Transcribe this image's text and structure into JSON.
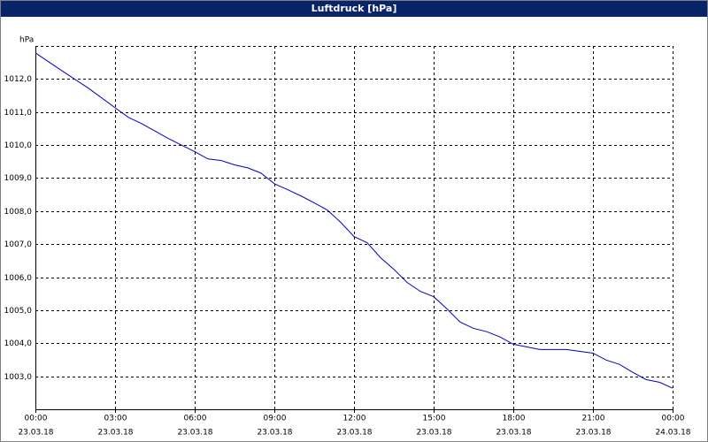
{
  "chart_data": {
    "type": "line",
    "title": "Luftdruck [hPa]",
    "y_label": "hPa",
    "x": [
      0,
      1,
      2,
      3,
      3.5,
      4,
      5,
      6,
      6.5,
      7,
      7.5,
      8,
      8.5,
      9,
      9.5,
      10,
      10.5,
      11,
      11.5,
      12,
      12.5,
      13,
      13.5,
      14,
      14.5,
      15,
      15.5,
      16,
      16.5,
      17,
      17.5,
      18,
      18.5,
      19,
      20,
      21,
      21.5,
      22,
      22.5,
      23,
      23.5,
      24
    ],
    "series": [
      {
        "name": "Luftdruck",
        "color": "#0000c0",
        "values": [
          1012.79,
          1012.25,
          1011.72,
          1011.13,
          1010.84,
          1010.65,
          1010.2,
          1009.8,
          1009.58,
          1009.53,
          1009.4,
          1009.31,
          1009.15,
          1008.83,
          1008.65,
          1008.46,
          1008.25,
          1008.03,
          1007.66,
          1007.23,
          1007.04,
          1006.59,
          1006.24,
          1005.84,
          1005.57,
          1005.41,
          1005.04,
          1004.64,
          1004.45,
          1004.35,
          1004.19,
          1003.97,
          1003.89,
          1003.81,
          1003.81,
          1003.7,
          1003.49,
          1003.36,
          1003.12,
          1002.9,
          1002.82,
          1002.64
        ]
      }
    ],
    "xlim": [
      0,
      24
    ],
    "ylim": [
      1002,
      1013
    ],
    "xticks": [
      {
        "value": 0,
        "label": "00:00"
      },
      {
        "value": 3,
        "label": "03:00"
      },
      {
        "value": 6,
        "label": "06:00"
      },
      {
        "value": 9,
        "label": "09:00"
      },
      {
        "value": 12,
        "label": "12:00"
      },
      {
        "value": 15,
        "label": "15:00"
      },
      {
        "value": 18,
        "label": "18:00"
      },
      {
        "value": 21,
        "label": "21:00"
      },
      {
        "value": 24,
        "label": "00:00"
      }
    ],
    "xtick_dates": [
      "23.03.18",
      "23.03.18",
      "23.03.18",
      "23.03.18",
      "23.03.18",
      "23.03.18",
      "23.03.18",
      "23.03.18",
      "24.03.18"
    ],
    "yticks": [
      {
        "value": 1003,
        "label": "1003,0"
      },
      {
        "value": 1004,
        "label": "1004,0"
      },
      {
        "value": 1005,
        "label": "1005,0"
      },
      {
        "value": 1006,
        "label": "1006,0"
      },
      {
        "value": 1007,
        "label": "1007,0"
      },
      {
        "value": 1008,
        "label": "1008,0"
      },
      {
        "value": 1009,
        "label": "1009,0"
      },
      {
        "value": 1010,
        "label": "1010,0"
      },
      {
        "value": 1011,
        "label": "1011,0"
      },
      {
        "value": 1012,
        "label": "1012,0"
      }
    ],
    "grid": true
  }
}
